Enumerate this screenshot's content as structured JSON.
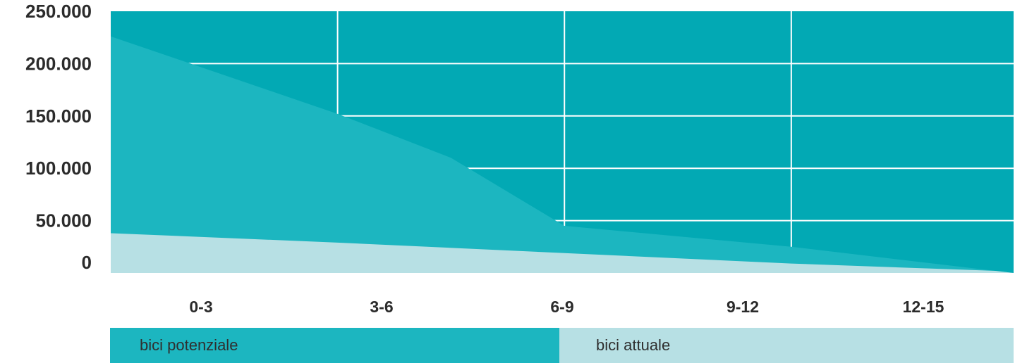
{
  "chart_data": {
    "type": "area",
    "categories": [
      "0-3",
      "3-6",
      "6-9",
      "9-12",
      "12-15"
    ],
    "ylim": [
      0,
      250000
    ],
    "yticks": [
      0,
      50000,
      100000,
      150000,
      200000,
      250000
    ],
    "ytick_labels": [
      "0",
      "50.000",
      "100.000",
      "150.000",
      "200.000",
      "250.000"
    ],
    "grid": true,
    "legend_position": "bottom",
    "series": [
      {
        "name": "bici potenziale",
        "x": [
          0,
          1,
          1.5,
          2,
          3,
          3.9
        ],
        "values": [
          226000,
          152000,
          110000,
          45000,
          25000,
          2000
        ]
      },
      {
        "name": "bici attuale",
        "x": [
          0,
          1,
          2,
          3,
          3.9
        ],
        "values": [
          38000,
          29000,
          19000,
          9000,
          2000
        ]
      }
    ],
    "colors": {
      "background": "#02a9b4",
      "potential": "#1cb6c0",
      "actual": "#b7e0e4",
      "grid": "#ffffff"
    }
  }
}
